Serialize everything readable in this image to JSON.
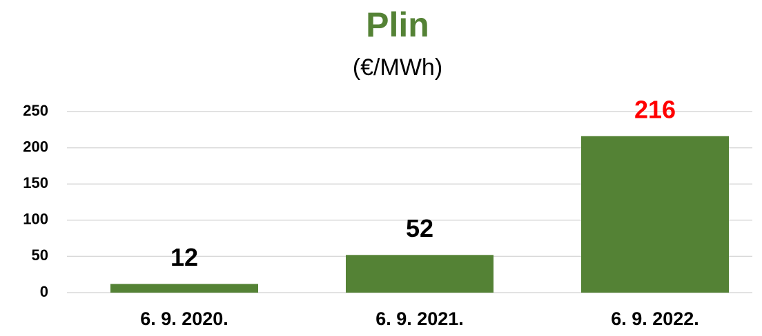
{
  "chart_data": {
    "type": "bar",
    "title": "Plin",
    "subtitle": "(€/MWh)",
    "categories": [
      "6. 9. 2020.",
      "6. 9. 2021.",
      "6. 9. 2022."
    ],
    "values": [
      12,
      52,
      216
    ],
    "color": "#548235",
    "label_colors": [
      "#000000",
      "#000000",
      "#ff0000"
    ],
    "ylim": [
      0,
      250
    ],
    "yticks": [
      0,
      50,
      100,
      150,
      200,
      250
    ],
    "grid": true
  }
}
